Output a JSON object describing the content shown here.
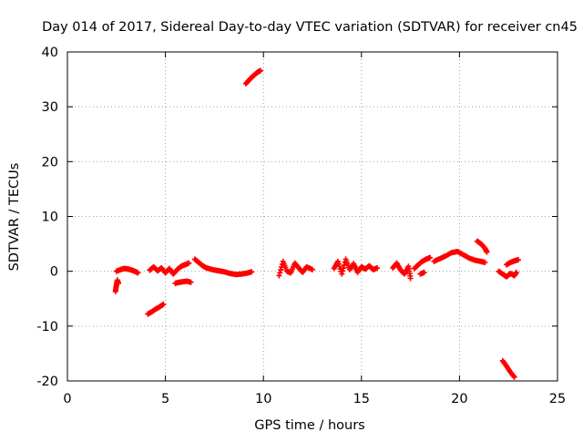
{
  "chart_data": {
    "type": "scatter",
    "title": "Day 014 of 2017, Sidereal Day-to-day VTEC variation (SDTVAR) for receiver cn45",
    "xlabel": "GPS time / hours",
    "ylabel": "SDTVAR / TECUs",
    "xlim": [
      0,
      25
    ],
    "ylim": [
      -20,
      40
    ],
    "x_ticks": [
      0,
      5,
      10,
      15,
      20,
      25
    ],
    "x_tick_labels": [
      "0",
      "5",
      "10",
      "15",
      "20",
      "25"
    ],
    "y_ticks": [
      -20,
      -10,
      0,
      10,
      20,
      30,
      40
    ],
    "y_tick_labels": [
      "-20",
      "-10",
      "0",
      "10",
      "20",
      "30",
      "40"
    ],
    "grid": true,
    "marker": "+",
    "series": [
      {
        "name": "SDTVAR",
        "color": "#ff0000",
        "segments": [
          [
            [
              2.45,
              -3.7
            ],
            [
              2.5,
              -2.5
            ],
            [
              2.55,
              -1.6
            ],
            [
              2.6,
              -2.2
            ]
          ],
          [
            [
              2.5,
              0.0
            ],
            [
              2.7,
              0.3
            ],
            [
              2.9,
              0.5
            ],
            [
              3.1,
              0.4
            ],
            [
              3.3,
              0.2
            ],
            [
              3.5,
              -0.1
            ],
            [
              3.6,
              -0.3
            ]
          ],
          [
            [
              4.1,
              -7.8
            ],
            [
              4.3,
              -7.4
            ],
            [
              4.5,
              -6.9
            ],
            [
              4.7,
              -6.5
            ],
            [
              4.9,
              -6.0
            ]
          ],
          [
            [
              4.2,
              0.2
            ],
            [
              4.4,
              0.8
            ],
            [
              4.6,
              0.1
            ],
            [
              4.8,
              0.6
            ],
            [
              5.0,
              -0.3
            ],
            [
              5.2,
              0.5
            ],
            [
              5.4,
              -0.5
            ],
            [
              5.6,
              0.3
            ],
            [
              5.8,
              0.9
            ],
            [
              6.0,
              1.2
            ],
            [
              6.2,
              1.5
            ]
          ],
          [
            [
              5.5,
              -2.2
            ],
            [
              5.7,
              -2.0
            ],
            [
              5.9,
              -1.9
            ],
            [
              6.1,
              -1.8
            ],
            [
              6.3,
              -2.0
            ]
          ],
          [
            [
              6.5,
              2.2
            ],
            [
              6.7,
              1.6
            ],
            [
              6.9,
              1.0
            ],
            [
              7.1,
              0.6
            ],
            [
              7.4,
              0.3
            ],
            [
              7.7,
              0.1
            ],
            [
              8.0,
              -0.1
            ],
            [
              8.3,
              -0.4
            ],
            [
              8.6,
              -0.6
            ],
            [
              8.9,
              -0.5
            ],
            [
              9.2,
              -0.3
            ],
            [
              9.4,
              -0.1
            ]
          ],
          [
            [
              9.1,
              34.2
            ],
            [
              9.3,
              35.0
            ],
            [
              9.5,
              35.7
            ],
            [
              9.7,
              36.3
            ],
            [
              9.85,
              36.6
            ]
          ],
          [
            [
              10.8,
              -0.8
            ],
            [
              11.0,
              1.8
            ],
            [
              11.2,
              0.0
            ],
            [
              11.4,
              -0.3
            ],
            [
              11.6,
              1.5
            ],
            [
              11.8,
              0.6
            ],
            [
              12.0,
              -0.2
            ],
            [
              12.2,
              0.8
            ],
            [
              12.5,
              0.3
            ]
          ],
          [
            [
              13.6,
              0.5
            ],
            [
              13.8,
              1.8
            ],
            [
              14.0,
              -0.5
            ],
            [
              14.2,
              2.2
            ],
            [
              14.4,
              0.3
            ],
            [
              14.6,
              1.4
            ],
            [
              14.8,
              -0.2
            ],
            [
              15.0,
              0.8
            ],
            [
              15.2,
              0.4
            ],
            [
              15.4,
              1.0
            ],
            [
              15.6,
              0.3
            ],
            [
              15.8,
              0.6
            ]
          ],
          [
            [
              16.6,
              0.6
            ],
            [
              16.8,
              1.5
            ],
            [
              17.0,
              0.2
            ],
            [
              17.2,
              -0.5
            ],
            [
              17.4,
              0.9
            ],
            [
              17.5,
              -1.3
            ]
          ],
          [
            [
              17.7,
              0.5
            ],
            [
              17.9,
              1.2
            ],
            [
              18.1,
              1.8
            ],
            [
              18.3,
              2.2
            ],
            [
              18.5,
              2.5
            ]
          ],
          [
            [
              18.0,
              -0.5
            ],
            [
              18.2,
              -0.2
            ]
          ],
          [
            [
              18.7,
              1.8
            ],
            [
              19.0,
              2.3
            ],
            [
              19.3,
              2.8
            ],
            [
              19.6,
              3.4
            ],
            [
              19.9,
              3.6
            ],
            [
              20.2,
              3.0
            ],
            [
              20.5,
              2.4
            ],
            [
              20.8,
              2.0
            ],
            [
              21.1,
              1.8
            ],
            [
              21.3,
              1.6
            ]
          ],
          [
            [
              20.9,
              5.5
            ],
            [
              21.1,
              5.0
            ],
            [
              21.3,
              4.2
            ],
            [
              21.4,
              3.5
            ]
          ],
          [
            [
              22.0,
              0.0
            ],
            [
              22.2,
              -0.5
            ],
            [
              22.4,
              -1.0
            ],
            [
              22.6,
              -0.4
            ],
            [
              22.8,
              -0.8
            ],
            [
              22.9,
              -0.2
            ]
          ],
          [
            [
              22.4,
              1.2
            ],
            [
              22.6,
              1.6
            ],
            [
              22.8,
              1.9
            ],
            [
              23.0,
              2.1
            ]
          ],
          [
            [
              22.2,
              -16.3
            ],
            [
              22.4,
              -17.3
            ],
            [
              22.6,
              -18.4
            ],
            [
              22.8,
              -19.3
            ]
          ]
        ]
      }
    ]
  }
}
